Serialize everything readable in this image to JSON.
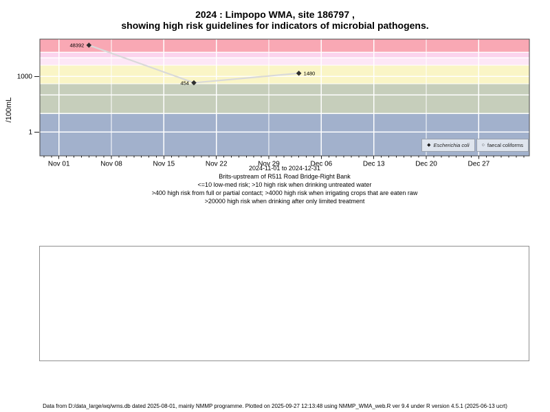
{
  "title": {
    "line1": "2024 : Limpopo WMA, site 186797 ,",
    "line2": "showing high risk guidelines for indicators of microbial pathogens."
  },
  "caption": {
    "lines": [
      "2024-11-01 to 2024-12-31",
      "Brits-upstream of R511 Road Bridge-Right Bank",
      "<=10 low-med risk; >10 high risk when drinking untreated water",
      ">400 high risk from full or partial contact; >4000 high risk when irrigating crops that are eaten raw",
      ">20000 high risk when drinking after only limited treatment"
    ]
  },
  "legend": {
    "items": [
      {
        "label": "Escherichia coli",
        "glyph": "◆",
        "marker": "filled-diamond"
      },
      {
        "label": "faecal coliforms",
        "glyph": "○",
        "marker": "open-circle"
      }
    ]
  },
  "footer": {
    "text": "Data from D:/data_large/wq/wms.db dated 2025-08-01, mainly NMMP programme. Plotted on 2025-09-27 12:13:48 using NMMP_WMA_web.R ver 9.4 under R version 4.5.1 (2025-06-13 ucrt)"
  },
  "chart_data": {
    "type": "line",
    "title": "2024 : Limpopo WMA, site 186797 , showing high risk guidelines for indicators of microbial pathogens.",
    "ylabel": "/100mL",
    "y_scale": "log",
    "y_ticks": [
      {
        "value": 1000,
        "label": "1000"
      },
      {
        "value": 1,
        "label": "1"
      }
    ],
    "x_range": {
      "start": "2024-11-01",
      "end": "2024-12-31"
    },
    "x_ticks": [
      {
        "date": "2024-11-01",
        "label": "Nov 01"
      },
      {
        "date": "2024-11-08",
        "label": "Nov 08"
      },
      {
        "date": "2024-11-15",
        "label": "Nov 15"
      },
      {
        "date": "2024-11-22",
        "label": "Nov 22"
      },
      {
        "date": "2024-11-29",
        "label": "Nov 29"
      },
      {
        "date": "2024-12-06",
        "label": "Dec 06"
      },
      {
        "date": "2024-12-13",
        "label": "Dec 13"
      },
      {
        "date": "2024-12-20",
        "label": "Dec 20"
      },
      {
        "date": "2024-12-27",
        "label": "Dec 27"
      }
    ],
    "risk_bands": [
      {
        "min": 20000,
        "max": null,
        "color": "#f9a8b4"
      },
      {
        "min": 10000,
        "max": 20000,
        "color": "#fbd4ed"
      },
      {
        "min": 4000,
        "max": 10000,
        "color": "#fde7f6"
      },
      {
        "min": 400,
        "max": 4000,
        "color": "#faf5c6"
      },
      {
        "min": 10,
        "max": 400,
        "color": "#c6cebb"
      },
      {
        "min": null,
        "max": 10,
        "color": "#a2b1cc"
      }
    ],
    "grid_decades": [
      1,
      10,
      100,
      1000,
      10000
    ],
    "series": [
      {
        "name": "Escherichia coli",
        "marker": "filled-diamond",
        "points": [
          {
            "date": "2024-11-05",
            "value": 48392,
            "label": "48392",
            "label_side": "left"
          },
          {
            "date": "2024-11-19",
            "value": 454,
            "label": "454",
            "label_side": "left"
          },
          {
            "date": "2024-12-03",
            "value": 1480,
            "label": "1480",
            "label_side": "right"
          }
        ]
      },
      {
        "name": "faecal coliforms",
        "marker": "open-circle",
        "points": []
      }
    ],
    "line_color": "#d9d9d9",
    "marker_color": "#2e2e2e",
    "grid_color": "#ffffff"
  }
}
